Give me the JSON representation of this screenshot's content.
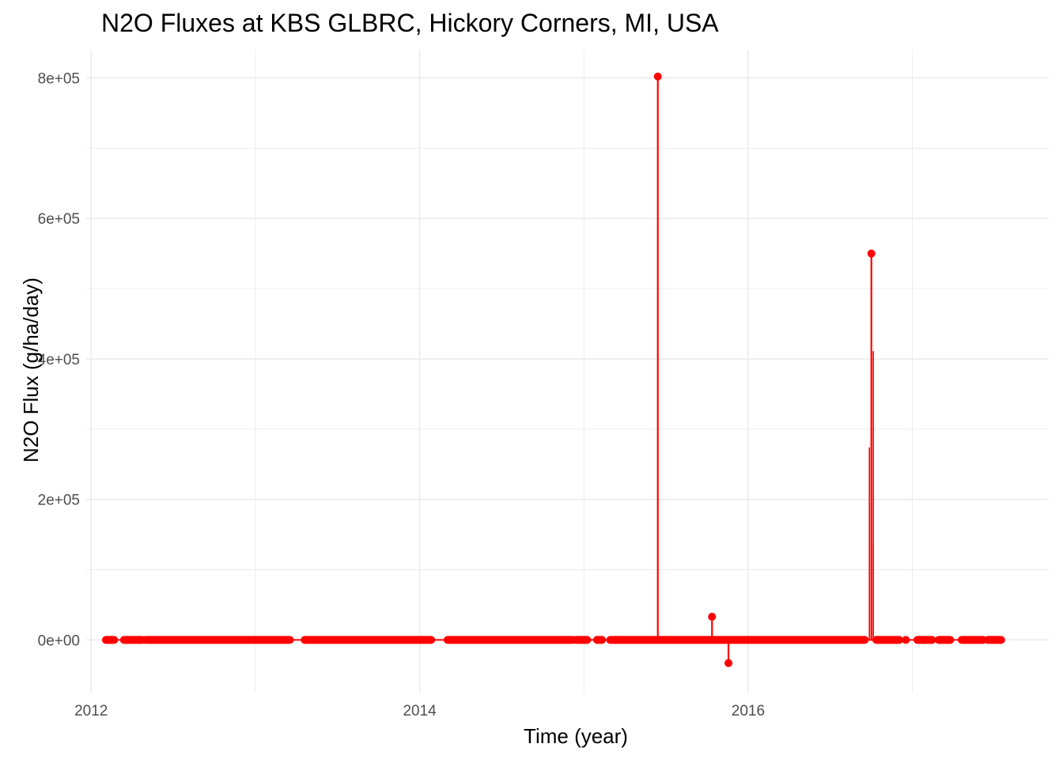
{
  "chart_data": {
    "type": "line",
    "title": "N2O Fluxes at KBS GLBRC, Hickory Corners, MI, USA",
    "xlabel": "Time (year)",
    "ylabel": "N2O Flux (g/ha/day)",
    "xlim": [
      2011.97,
      2017.83
    ],
    "ylim": [
      -75000,
      840000
    ],
    "x_ticks": [
      2012,
      2014,
      2016
    ],
    "x_tick_labels": [
      "2012",
      "2014",
      "2016"
    ],
    "y_ticks": [
      0,
      200000,
      400000,
      600000,
      800000
    ],
    "y_tick_labels": [
      "0e+00",
      "2e+05",
      "4e+05",
      "6e+05",
      "8e+05"
    ],
    "grid": true,
    "series": [
      {
        "color": "#ff0000",
        "baseline_segments": [
          [
            2012.09,
            2012.14
          ],
          [
            2012.2,
            2012.31
          ],
          [
            2012.33,
            2013.21
          ],
          [
            2013.3,
            2014.07
          ],
          [
            2014.17,
            2014.93
          ],
          [
            2014.95,
            2015.02
          ],
          [
            2015.08,
            2015.11
          ],
          [
            2015.16,
            2016.71
          ],
          [
            2016.78,
            2016.92
          ],
          [
            2017.03,
            2017.12
          ],
          [
            2017.16,
            2017.23
          ],
          [
            2017.3,
            2017.43
          ],
          [
            2017.46,
            2017.54
          ]
        ],
        "baseline_isolated_points": [
          2012.22,
          2012.26,
          2012.3,
          2016.96
        ],
        "spikes": [
          {
            "x": 2015.45,
            "y": 802000
          },
          {
            "x": 2015.78,
            "y": 33000
          },
          {
            "x": 2015.88,
            "y": -33000
          },
          {
            "x": 2016.75,
            "y": 550000
          }
        ],
        "spike_intermediate_values": [
          {
            "x": 2016.75,
            "values": [
              411000,
              274000,
              137000
            ]
          }
        ]
      }
    ]
  }
}
